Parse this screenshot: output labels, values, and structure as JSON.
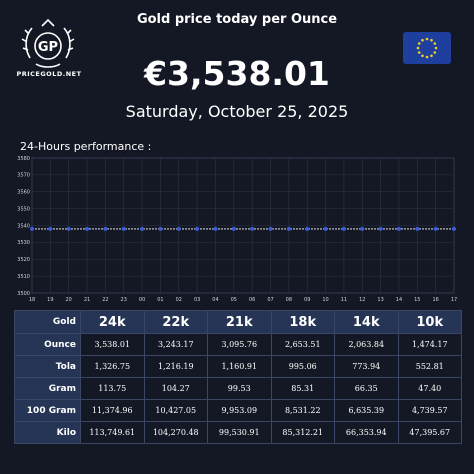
{
  "brand": {
    "name": "PRICEGOLD.NET",
    "logo_initials": "GP"
  },
  "header": {
    "title": "Gold price today per Ounce",
    "price": "€3,538.01",
    "date": "Saturday, October 25, 2025",
    "flag_icon": "eu-flag-icon"
  },
  "chart_title": "24-Hours performance :",
  "chart_data": {
    "type": "line",
    "x": [
      "18",
      "19",
      "20",
      "21",
      "22",
      "23",
      "00",
      "01",
      "02",
      "03",
      "04",
      "05",
      "06",
      "07",
      "08",
      "09",
      "10",
      "11",
      "12",
      "13",
      "14",
      "15",
      "16",
      "17"
    ],
    "values": [
      3538.01,
      3538.01,
      3538.01,
      3538.01,
      3538.01,
      3538.01,
      3538.01,
      3538.01,
      3538.01,
      3538.01,
      3538.01,
      3538.01,
      3538.01,
      3538.01,
      3538.01,
      3538.01,
      3538.01,
      3538.01,
      3538.01,
      3538.01,
      3538.01,
      3538.01,
      3538.01,
      3538.01
    ],
    "y_ticks": [
      "3580",
      "3570",
      "3560",
      "3550",
      "3540",
      "3530",
      "3520",
      "3510",
      "3500"
    ],
    "ylim": [
      3500,
      3580
    ],
    "grid": true,
    "line_color": "#ffffff",
    "marker_color": "#3b5bdb"
  },
  "table": {
    "corner": "Gold",
    "columns": [
      "24k",
      "22k",
      "21k",
      "18k",
      "14k",
      "10k"
    ],
    "rows": [
      {
        "label": "Ounce",
        "values": [
          "3,538.01",
          "3,243.17",
          "3,095.76",
          "2,653.51",
          "2,063.84",
          "1,474.17"
        ]
      },
      {
        "label": "Tola",
        "values": [
          "1,326.75",
          "1,216.19",
          "1,160.91",
          "995.06",
          "773.94",
          "552.81"
        ]
      },
      {
        "label": "Gram",
        "values": [
          "113.75",
          "104.27",
          "99.53",
          "85.31",
          "66.35",
          "47.40"
        ]
      },
      {
        "label": "100 Gram",
        "values": [
          "11,374.96",
          "10,427.05",
          "9,953.09",
          "8,531.22",
          "6,635.39",
          "4,739.57"
        ]
      },
      {
        "label": "Kilo",
        "values": [
          "113,749.61",
          "104,270.48",
          "99,530.91",
          "85,312.21",
          "66,353.94",
          "47,395.67"
        ]
      }
    ]
  }
}
